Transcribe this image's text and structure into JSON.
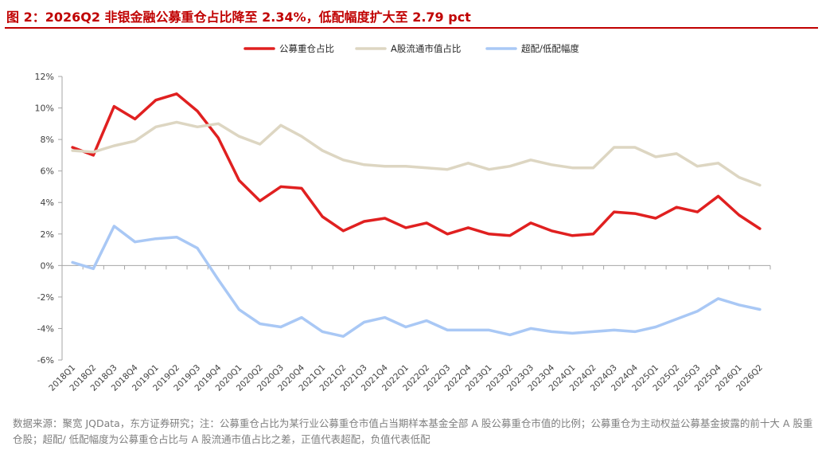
{
  "title": "图 2：2026Q2 非银金融公募重仓占比降至 2.34%，低配幅度扩大至 2.79 pct",
  "source": "数据来源：聚宽 JQData，东方证券研究；注：公募重仓占比为某行业公募重仓市值占当期样本基金全部 A 股公募重仓市值的比例；公募重仓为主动权益公募基金披露的前十大 A 股重仓股；超配/ 低配幅度为公募重仓占比与 A 股流通市值占比之差，正值代表超配，负值代表低配",
  "chart_data": {
    "type": "line",
    "title": "",
    "xlabel": "",
    "ylabel": "",
    "ylim": [
      -6,
      12
    ],
    "yticks": [
      -6,
      -4,
      -2,
      0,
      2,
      4,
      6,
      8,
      10,
      12
    ],
    "ytick_labels": [
      "-6%",
      "-4%",
      "-2%",
      "0%",
      "2%",
      "4%",
      "6%",
      "8%",
      "10%",
      "12%"
    ],
    "grid": false,
    "legend_position": "top",
    "categories": [
      "2018Q1",
      "2018Q2",
      "2018Q3",
      "2018Q4",
      "2019Q1",
      "2019Q2",
      "2019Q3",
      "2019Q4",
      "2020Q1",
      "2020Q2",
      "2020Q3",
      "2020Q4",
      "2021Q1",
      "2021Q2",
      "2021Q3",
      "2021Q4",
      "2022Q1",
      "2022Q2",
      "2022Q3",
      "2022Q4",
      "2023Q1",
      "2023Q2",
      "2023Q3",
      "2023Q4",
      "2024Q1",
      "2024Q2",
      "2024Q3",
      "2024Q4",
      "2025Q1",
      "2025Q2",
      "2025Q3",
      "2025Q4",
      "2026Q1",
      "2026Q2"
    ],
    "series": [
      {
        "name": "公募重仓占比",
        "color": "#e02020",
        "values": [
          7.5,
          7.0,
          10.1,
          9.3,
          10.5,
          10.9,
          9.8,
          8.1,
          5.4,
          4.1,
          5.0,
          4.9,
          3.1,
          2.2,
          2.8,
          3.0,
          2.4,
          2.7,
          2.0,
          2.4,
          2.0,
          1.9,
          2.7,
          2.2,
          1.9,
          2.0,
          3.4,
          3.3,
          3.0,
          3.7,
          3.4,
          4.4,
          3.2,
          2.34
        ]
      },
      {
        "name": "A股流通市值占比",
        "color": "#ddd6c2",
        "values": [
          7.3,
          7.2,
          7.6,
          7.9,
          8.8,
          9.1,
          8.8,
          9.0,
          8.2,
          7.7,
          8.9,
          8.2,
          7.3,
          6.7,
          6.4,
          6.3,
          6.3,
          6.2,
          6.1,
          6.5,
          6.1,
          6.3,
          6.7,
          6.4,
          6.2,
          6.2,
          7.5,
          7.5,
          6.9,
          7.1,
          6.3,
          6.5,
          5.6,
          5.1
        ]
      },
      {
        "name": "超配/低配幅度",
        "color": "#a9c8f5",
        "values": [
          0.2,
          -0.2,
          2.5,
          1.5,
          1.7,
          1.8,
          1.1,
          -0.9,
          -2.8,
          -3.7,
          -3.9,
          -3.3,
          -4.2,
          -4.5,
          -3.6,
          -3.3,
          -3.9,
          -3.5,
          -4.1,
          -4.1,
          -4.1,
          -4.4,
          -4.0,
          -4.2,
          -4.3,
          -4.2,
          -4.1,
          -4.2,
          -3.9,
          -3.4,
          -2.9,
          -2.1,
          -2.5,
          -2.79
        ]
      }
    ]
  }
}
